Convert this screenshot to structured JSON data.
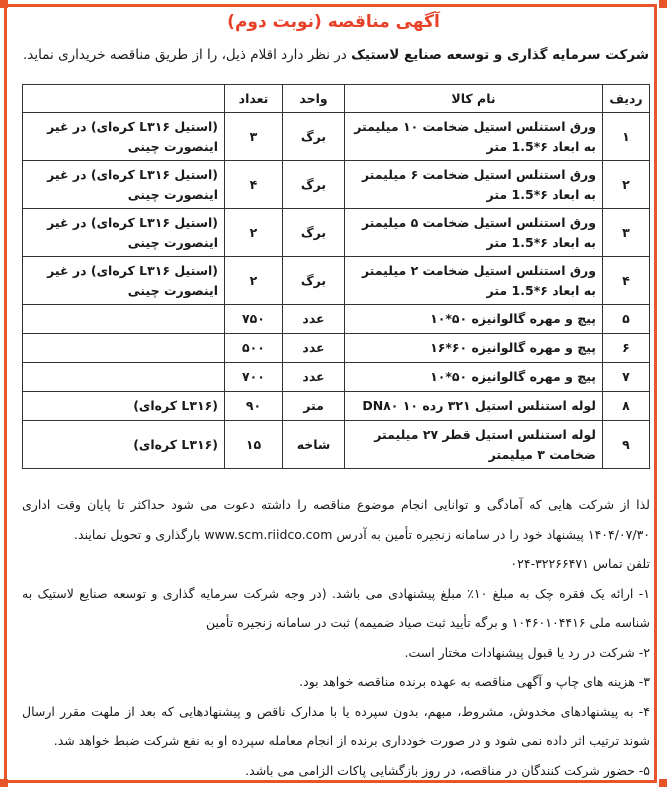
{
  "title": "آگهی مناقصه (نوبت دوم)",
  "intro": {
    "company": "شرکت سرمایه گذاری و توسعه صنایع لاستیک",
    "rest": " در نظر دارد اقلام ذیل، را از طریق مناقصه خریداری نماید."
  },
  "table": {
    "headers": {
      "row": "ردیف",
      "name": "نام کالا",
      "unit": "واحد",
      "qty": "تعداد",
      "note": ""
    },
    "rows": [
      {
        "row": "۱",
        "name": "ورق استنلس استیل ضخامت ۱۰ میلیمتر به ابعاد ۶*1.5 متر",
        "unit": "برگ",
        "qty": "۳",
        "note": "(استیل L۳۱۶ کره‌ای) در غیر اینصورت چینی"
      },
      {
        "row": "۲",
        "name": "ورق استنلس استیل ضخامت ۶ میلیمتر به ابعاد ۶*1.5 متر",
        "unit": "برگ",
        "qty": "۴",
        "note": "(استیل L۳۱۶ کره‌ای) در غیر اینصورت چینی"
      },
      {
        "row": "۳",
        "name": "ورق استنلس استیل ضخامت ۵ میلیمتر به ابعاد ۶*1.5 متر",
        "unit": "برگ",
        "qty": "۲",
        "note": "(استیل L۳۱۶ کره‌ای) در غیر اینصورت چینی"
      },
      {
        "row": "۴",
        "name": "ورق استنلس استیل ضخامت ۲ میلیمتر به ابعاد ۶*1.5 متر",
        "unit": "برگ",
        "qty": "۲",
        "note": "(استیل L۳۱۶ کره‌ای) در غیر اینصورت چینی"
      },
      {
        "row": "۵",
        "name": "پیچ و مهره گالوانیزه ۵۰*۱۰",
        "unit": "عدد",
        "qty": "۷۵۰",
        "note": ""
      },
      {
        "row": "۶",
        "name": "پیچ و مهره گالوانیزه ۶۰*۱۶",
        "unit": "عدد",
        "qty": "۵۰۰",
        "note": ""
      },
      {
        "row": "۷",
        "name": "پیچ و مهره گالوانیزه ۵۰*۱۰",
        "unit": "عدد",
        "qty": "۷۰۰",
        "note": ""
      },
      {
        "row": "۸",
        "name": "لوله استنلس استیل ۳۲۱ رده ۱۰ DN۸۰",
        "unit": "متر",
        "qty": "۹۰",
        "note": "(L۳۱۶ کره‌ای)"
      },
      {
        "row": "۹",
        "name": "لوله استنلس استیل قطر ۲۷ میلیمتر ضخامت ۳ میلیمتر",
        "unit": "شاخه",
        "qty": "۱۵",
        "note": "(L۳۱۶ کره‌ای)"
      }
    ]
  },
  "body": {
    "invite": "لذا از شرکت هایی که آمادگی و توانایی انجام موضوع مناقصه را داشته دعوت می شود حداکثر تا پایان وقت اداری ۱۴۰۴/۰۷/۳۰ پیشنهاد خود را در سامانه زنجیره تأمین به آدرس www.scm.riidco.com بارگذاری و تحویل نمایند.",
    "phone": "تلفن تماس ۳۲۲۶۶۴۷۱-۰۲۴",
    "items": [
      "۱- ارائه یک فقره چک به مبلغ ۱۰٪ مبلغ پیشنهادی می باشد. (در وجه شرکت سرمایه گذاری و توسعه صنایع لاستیک به شناسه ملی ۱۰۴۶۰۱۰۴۴۱۶ و برگه تأیید ثبت صیاد ضمیمه) ثبت در سامانه زنجیره تأمین",
      "۲- شرکت در رد یا قبول پیشنهادات مختار است.",
      "۳- هزینه های چاپ و آگهی مناقصه به عهده برنده مناقصه خواهد بود.",
      "۴- به پیشنهادهای مخدوش، مشروط، مبهم، بدون سپرده یا با مدارک ناقص و پیشنهادهایی که بعد از ملهت مقرر ارسال شوند ترتیب اثر داده نمی شود و در صورت خودداری برنده از انجام معامله سپرده او به نفع شرکت ضبط خواهد شد.",
      "۵- حضور شرکت کنندگان در مناقصه، در روز بازگشایی پاکات الزامی می باشد."
    ]
  },
  "colors": {
    "frame": "#e8552a",
    "title": "#e8412a"
  }
}
